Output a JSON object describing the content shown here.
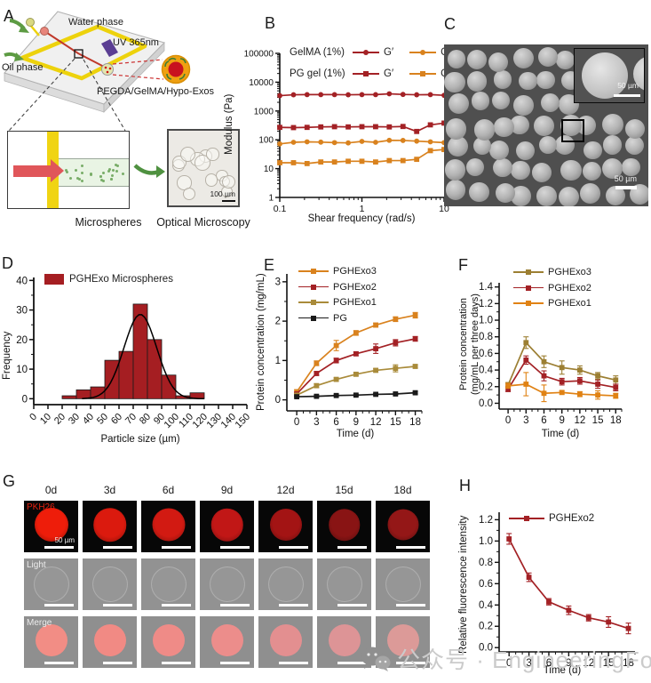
{
  "panels": {
    "A": {
      "label": "A",
      "water_phase": "Water phase",
      "uv_label": "UV 365nm",
      "oil_phase": "Oil phase",
      "composite_label": "PEGDA/GelMA/Hypo-Exos",
      "microspheres_label": "Microspheres",
      "optical_label": "Optical Microscopy",
      "scale_bar": "100 µm"
    },
    "B": {
      "label": "B"
    },
    "C": {
      "label": "C",
      "scale_main": "50 µm",
      "scale_inset": "50 µm"
    },
    "D": {
      "label": "D"
    },
    "E": {
      "label": "E"
    },
    "F": {
      "label": "F"
    },
    "G": {
      "label": "G",
      "columns": [
        "0d",
        "3d",
        "6d",
        "9d",
        "12d",
        "15d",
        "18d"
      ],
      "row_labels": [
        "PKH26",
        "Light",
        "Merge"
      ],
      "scale_bar": "50 µm",
      "pkh26_label_color": "#e8210f",
      "fluor_colors": [
        "#ee1d0a",
        "#db1a0e",
        "#d21a12",
        "#c11716",
        "#a31414",
        "#891414",
        "#941717"
      ],
      "merge_colors": [
        "#f28d85",
        "#f18a84",
        "#ef8b87",
        "#ec8d8b",
        "#e38f90",
        "#dd9496",
        "#dc9a98"
      ]
    },
    "H": {
      "label": "H"
    }
  },
  "watermark": {
    "text": "公众号 · EngineeringForLife"
  },
  "chart_data": [
    {
      "id": "B",
      "type": "line",
      "xscale": "log",
      "yscale": "log",
      "xlabel": "Shear frequency (rad/s)",
      "ylabel": "Modulus (Pa)",
      "xlim": [
        0.1,
        10
      ],
      "ylim": [
        1,
        100000
      ],
      "xticks": [
        0.1,
        1,
        10
      ],
      "xtick_labels": [
        "0.1",
        "1",
        "10"
      ],
      "yticks": [
        1,
        10,
        100,
        1000,
        10000,
        100000
      ],
      "ytick_labels": [
        "1",
        "10",
        "100",
        "1000",
        "10000",
        "100000"
      ],
      "legend_rows": [
        "GelMA (1%)",
        "PG gel (1%)"
      ],
      "legend_items": [
        "G′",
        "G″"
      ],
      "x": [
        0.1,
        0.147,
        0.215,
        0.316,
        0.464,
        0.681,
        1,
        1.468,
        2.154,
        3.162,
        4.642,
        6.813,
        10
      ],
      "series": [
        {
          "name": "GelMA (1%) G′",
          "marker": "circle",
          "color": "#a32125",
          "values": [
            3400,
            3650,
            3700,
            3700,
            3700,
            3650,
            3700,
            3700,
            3950,
            3750,
            3650,
            3700,
            3500
          ]
        },
        {
          "name": "PG gel (1%) G′",
          "marker": "square",
          "color": "#a32125",
          "values": [
            270,
            265,
            270,
            280,
            285,
            280,
            285,
            285,
            280,
            290,
            195,
            330,
            380
          ]
        },
        {
          "name": "GelMA (1%) G″",
          "marker": "circle",
          "color": "#d9821e",
          "values": [
            72,
            82,
            85,
            83,
            80,
            78,
            88,
            82,
            96,
            95,
            90,
            85,
            80
          ]
        },
        {
          "name": "PG gel (1%) G″",
          "marker": "square",
          "color": "#d9821e",
          "values": [
            16,
            16,
            15,
            17,
            17,
            18,
            18,
            17,
            19,
            19,
            21,
            42,
            46
          ]
        }
      ]
    },
    {
      "id": "D",
      "type": "histogram",
      "title": "PGHExo Microspheres",
      "xlabel": "Particle size (µm)",
      "ylabel": "Frequency",
      "bar_color": "#a51e22",
      "bin_start": 20,
      "bin_width": 10,
      "counts": [
        1,
        3,
        4,
        13,
        16,
        32,
        20,
        8,
        1,
        2
      ],
      "xticks": [
        0,
        10,
        20,
        30,
        40,
        50,
        60,
        70,
        80,
        90,
        100,
        110,
        120,
        130,
        140,
        150
      ],
      "yticks": [
        0,
        10,
        20,
        30,
        40
      ],
      "fit_curve": {
        "type": "gaussian",
        "mean": 75,
        "sd": 11.5,
        "amplitude": 28.5
      }
    },
    {
      "id": "E",
      "type": "line",
      "xlabel": "Time (d)",
      "ylabel": "Protein concentration (mg/mL)",
      "xlim": [
        -1.5,
        19
      ],
      "ylim": [
        -0.28,
        3.2
      ],
      "xticks": [
        0,
        3,
        6,
        9,
        12,
        15,
        18
      ],
      "yticks": [
        0,
        1,
        2,
        3
      ],
      "x": [
        0,
        3,
        6,
        9,
        12,
        15,
        18
      ],
      "series": [
        {
          "name": "PGHExo3",
          "marker": "square",
          "color": "#d9821e",
          "values": [
            0.2,
            0.93,
            1.38,
            1.7,
            1.9,
            2.05,
            2.15
          ],
          "errors": [
            0.06,
            0.06,
            0.13,
            0.06,
            0.05,
            0.06,
            0.07
          ]
        },
        {
          "name": "PGHExo2",
          "marker": "square",
          "color": "#a32125",
          "values": [
            0.15,
            0.67,
            1.0,
            1.17,
            1.3,
            1.45,
            1.55
          ],
          "errors": [
            0.04,
            0.05,
            0.06,
            0.05,
            0.12,
            0.08,
            0.06
          ]
        },
        {
          "name": "PGHExo1",
          "marker": "square",
          "color": "#a98b3a",
          "values": [
            0.12,
            0.36,
            0.52,
            0.65,
            0.75,
            0.8,
            0.85
          ],
          "errors": [
            0.03,
            0.05,
            0.04,
            0.04,
            0.04,
            0.09,
            0.04
          ]
        },
        {
          "name": "PG",
          "marker": "square",
          "color": "#1a1a1a",
          "values": [
            0.08,
            0.09,
            0.11,
            0.12,
            0.14,
            0.15,
            0.18
          ],
          "errors": [
            0.02,
            0.02,
            0.02,
            0.02,
            0.02,
            0.02,
            0.03
          ]
        }
      ]
    },
    {
      "id": "F",
      "type": "line",
      "xlabel": "Time (d)",
      "ylabel": "Protein concentration (mg/mL per three days)",
      "ylabel_lines": [
        "Protein concentration",
        "(mg/mL per three days)"
      ],
      "xlim": [
        -1.5,
        19
      ],
      "ylim": [
        -0.07,
        1.45
      ],
      "xticks": [
        0,
        3,
        6,
        9,
        12,
        15,
        18
      ],
      "yticks": [
        0,
        0.2,
        0.4,
        0.6,
        0.8,
        1,
        1.2,
        1.4
      ],
      "ytick_labels": [
        "0.0",
        "0.2",
        "0.4",
        "0.6",
        "0.8",
        "1.0",
        "1.2",
        "1.4"
      ],
      "x": [
        0,
        3,
        6,
        9,
        12,
        15,
        18
      ],
      "series": [
        {
          "name": "PGHExo3",
          "marker": "square",
          "color": "#9c7f33",
          "values": [
            0.22,
            0.73,
            0.5,
            0.43,
            0.4,
            0.33,
            0.28
          ],
          "errors": [
            0.03,
            0.07,
            0.07,
            0.08,
            0.05,
            0.04,
            0.05
          ]
        },
        {
          "name": "PGHExo2",
          "marker": "square",
          "color": "#a32125",
          "values": [
            0.17,
            0.52,
            0.33,
            0.26,
            0.27,
            0.23,
            0.19
          ],
          "errors": [
            0.03,
            0.05,
            0.06,
            0.04,
            0.04,
            0.05,
            0.04
          ]
        },
        {
          "name": "PGHExo1",
          "marker": "square",
          "color": "#e08214",
          "values": [
            0.21,
            0.23,
            0.12,
            0.13,
            0.11,
            0.1,
            0.09
          ],
          "errors": [
            0.03,
            0.14,
            0.1,
            0.02,
            0.03,
            0.05,
            0.03
          ]
        }
      ]
    },
    {
      "id": "H",
      "type": "line",
      "xlabel": "Time (d)",
      "ylabel": "Relative fluorescence intensity",
      "xlim": [
        -1.5,
        19
      ],
      "ylim": [
        -0.04,
        1.27
      ],
      "xticks": [
        0,
        3,
        6,
        9,
        12,
        15,
        18
      ],
      "yticks": [
        0,
        0.2,
        0.4,
        0.6,
        0.8,
        1,
        1.2
      ],
      "ytick_labels": [
        "0.0",
        "0.2",
        "0.4",
        "0.6",
        "0.8",
        "1.0",
        "1.2"
      ],
      "x": [
        0,
        3,
        6,
        9,
        12,
        15,
        18
      ],
      "series": [
        {
          "name": "PGHExo2",
          "marker": "square",
          "color": "#a32125",
          "values": [
            1.02,
            0.66,
            0.43,
            0.35,
            0.28,
            0.24,
            0.18
          ],
          "errors": [
            0.05,
            0.04,
            0.03,
            0.04,
            0.03,
            0.05,
            0.05
          ]
        }
      ]
    }
  ]
}
